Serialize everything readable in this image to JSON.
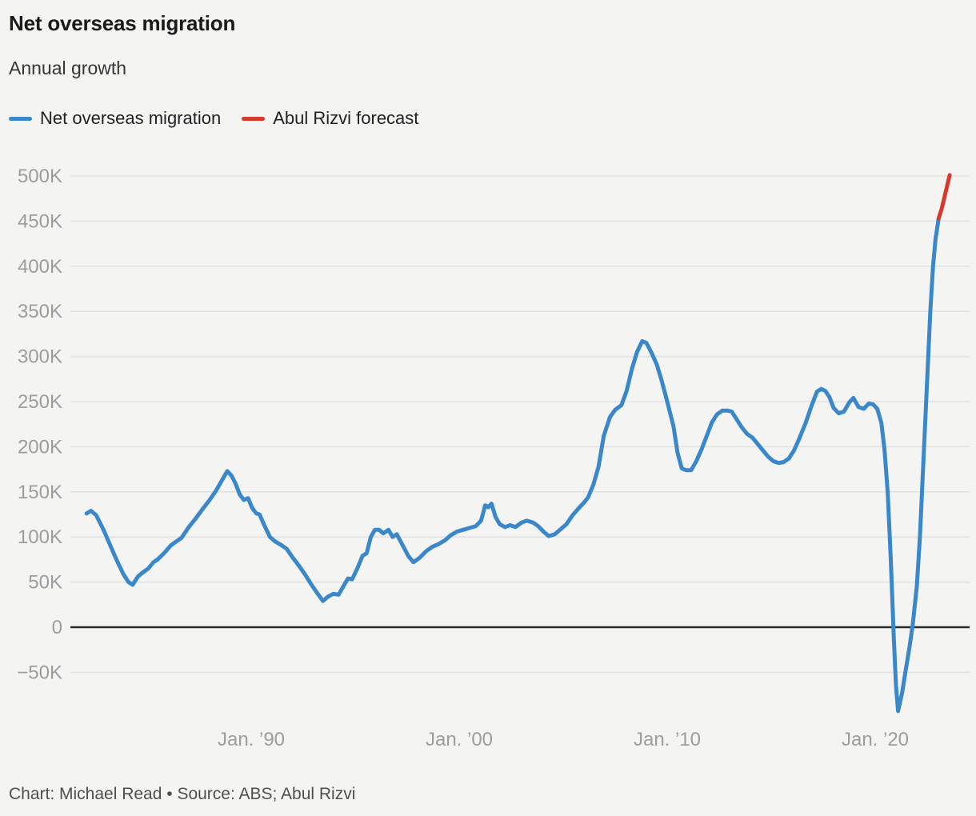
{
  "header": {
    "title": "Net overseas migration",
    "subtitle": "Annual growth"
  },
  "legend": {
    "items": [
      {
        "label": "Net overseas migration",
        "color": "#3a87c9"
      },
      {
        "label": "Abul Rizvi forecast",
        "color": "#d53a2d"
      }
    ]
  },
  "footer": {
    "text": "Chart: Michael Read • Source: ABS; Abul Rizvi"
  },
  "colors": {
    "background": "#f4f4f3",
    "gridline": "#e1e1e1",
    "zero_line": "#2b2b2b",
    "tick_label": "#9d9d9d",
    "title": "#1a1a1a",
    "subtitle": "#363636",
    "footer": "#4f4f4f",
    "nom_line": "#3a87c9",
    "forecast_line": "#d53a2d"
  },
  "chart_data": {
    "type": "line",
    "title": "Net overseas migration",
    "subtitle": "Annual growth",
    "xlabel": "",
    "ylabel": "",
    "unit": "persons (thousands)",
    "grid": true,
    "legend_position": "top-left",
    "x_range": [
      1982,
      2023.8
    ],
    "y_range_thousands": [
      -100,
      500
    ],
    "y_ticks": [
      {
        "value": 500,
        "label": "500K"
      },
      {
        "value": 450,
        "label": "450K"
      },
      {
        "value": 400,
        "label": "400K"
      },
      {
        "value": 350,
        "label": "350K"
      },
      {
        "value": 300,
        "label": "300K"
      },
      {
        "value": 250,
        "label": "250K"
      },
      {
        "value": 200,
        "label": "200K"
      },
      {
        "value": 150,
        "label": "150K"
      },
      {
        "value": 100,
        "label": "100K"
      },
      {
        "value": 50,
        "label": "50K"
      },
      {
        "value": 0,
        "label": "0"
      },
      {
        "value": -50,
        "label": "−50K"
      }
    ],
    "x_ticks": [
      {
        "value": 1990,
        "label": "Jan. ’90"
      },
      {
        "value": 2000,
        "label": "Jan. ’00"
      },
      {
        "value": 2010,
        "label": "Jan. ’10"
      },
      {
        "value": 2020,
        "label": "Jan. ’20"
      }
    ],
    "series": [
      {
        "name": "Net overseas migration",
        "color": "#3a87c9",
        "points": [
          [
            1982.08,
            126
          ],
          [
            1982.3,
            129
          ],
          [
            1982.55,
            124
          ],
          [
            1982.9,
            108
          ],
          [
            1983.2,
            92
          ],
          [
            1983.5,
            76
          ],
          [
            1983.85,
            59
          ],
          [
            1984.1,
            50
          ],
          [
            1984.3,
            47
          ],
          [
            1984.55,
            56
          ],
          [
            1984.75,
            60
          ],
          [
            1985.05,
            65
          ],
          [
            1985.3,
            72
          ],
          [
            1985.5,
            75
          ],
          [
            1985.85,
            83
          ],
          [
            1986.15,
            91
          ],
          [
            1986.4,
            95
          ],
          [
            1986.65,
            99
          ],
          [
            1987.0,
            111
          ],
          [
            1987.35,
            121
          ],
          [
            1987.7,
            132
          ],
          [
            1988.0,
            141
          ],
          [
            1988.3,
            151
          ],
          [
            1988.6,
            163
          ],
          [
            1988.85,
            173
          ],
          [
            1989.05,
            168
          ],
          [
            1989.25,
            159
          ],
          [
            1989.45,
            147
          ],
          [
            1989.65,
            141
          ],
          [
            1989.85,
            143
          ],
          [
            1990.05,
            132
          ],
          [
            1990.25,
            126
          ],
          [
            1990.4,
            125
          ],
          [
            1990.65,
            112
          ],
          [
            1990.9,
            100
          ],
          [
            1991.15,
            95
          ],
          [
            1991.45,
            91
          ],
          [
            1991.7,
            87
          ],
          [
            1992.0,
            77
          ],
          [
            1992.3,
            68
          ],
          [
            1992.6,
            58
          ],
          [
            1992.9,
            47
          ],
          [
            1993.2,
            37
          ],
          [
            1993.45,
            29
          ],
          [
            1993.7,
            34
          ],
          [
            1993.95,
            37
          ],
          [
            1994.2,
            36
          ],
          [
            1994.5,
            48
          ],
          [
            1994.65,
            54
          ],
          [
            1994.85,
            53
          ],
          [
            1995.1,
            65
          ],
          [
            1995.35,
            79
          ],
          [
            1995.55,
            82
          ],
          [
            1995.75,
            100
          ],
          [
            1995.95,
            108
          ],
          [
            1996.15,
            108
          ],
          [
            1996.35,
            104
          ],
          [
            1996.6,
            108
          ],
          [
            1996.8,
            100
          ],
          [
            1997.0,
            103
          ],
          [
            1997.3,
            90
          ],
          [
            1997.55,
            79
          ],
          [
            1997.8,
            72
          ],
          [
            1998.1,
            77
          ],
          [
            1998.4,
            84
          ],
          [
            1998.7,
            89
          ],
          [
            1999.0,
            92
          ],
          [
            1999.3,
            96
          ],
          [
            1999.6,
            102
          ],
          [
            1999.9,
            106
          ],
          [
            2000.2,
            108
          ],
          [
            2000.5,
            110
          ],
          [
            2000.8,
            112
          ],
          [
            2001.05,
            118
          ],
          [
            2001.25,
            135
          ],
          [
            2001.4,
            133
          ],
          [
            2001.55,
            137
          ],
          [
            2001.75,
            122
          ],
          [
            2001.95,
            114
          ],
          [
            2002.2,
            111
          ],
          [
            2002.45,
            113
          ],
          [
            2002.7,
            111
          ],
          [
            2003.0,
            116
          ],
          [
            2003.25,
            118
          ],
          [
            2003.55,
            116
          ],
          [
            2003.8,
            112
          ],
          [
            2004.05,
            106
          ],
          [
            2004.3,
            101
          ],
          [
            2004.6,
            103
          ],
          [
            2004.9,
            109
          ],
          [
            2005.15,
            114
          ],
          [
            2005.45,
            124
          ],
          [
            2005.75,
            132
          ],
          [
            2006.0,
            138
          ],
          [
            2006.2,
            144
          ],
          [
            2006.45,
            158
          ],
          [
            2006.7,
            178
          ],
          [
            2006.95,
            212
          ],
          [
            2007.25,
            233
          ],
          [
            2007.5,
            241
          ],
          [
            2007.8,
            246
          ],
          [
            2008.05,
            262
          ],
          [
            2008.3,
            286
          ],
          [
            2008.55,
            305
          ],
          [
            2008.8,
            317
          ],
          [
            2009.0,
            315
          ],
          [
            2009.25,
            304
          ],
          [
            2009.5,
            291
          ],
          [
            2009.7,
            276
          ],
          [
            2009.9,
            259
          ],
          [
            2010.1,
            241
          ],
          [
            2010.3,
            223
          ],
          [
            2010.5,
            193
          ],
          [
            2010.7,
            176
          ],
          [
            2010.9,
            174
          ],
          [
            2011.15,
            174
          ],
          [
            2011.4,
            184
          ],
          [
            2011.65,
            197
          ],
          [
            2011.9,
            212
          ],
          [
            2012.15,
            227
          ],
          [
            2012.4,
            236
          ],
          [
            2012.65,
            240
          ],
          [
            2012.9,
            240
          ],
          [
            2013.1,
            239
          ],
          [
            2013.35,
            230
          ],
          [
            2013.6,
            221
          ],
          [
            2013.85,
            214
          ],
          [
            2014.1,
            210
          ],
          [
            2014.35,
            203
          ],
          [
            2014.6,
            196
          ],
          [
            2014.85,
            189
          ],
          [
            2015.1,
            184
          ],
          [
            2015.35,
            182
          ],
          [
            2015.6,
            183
          ],
          [
            2015.85,
            187
          ],
          [
            2016.1,
            196
          ],
          [
            2016.35,
            209
          ],
          [
            2016.65,
            226
          ],
          [
            2016.95,
            246
          ],
          [
            2017.2,
            261
          ],
          [
            2017.4,
            264
          ],
          [
            2017.6,
            262
          ],
          [
            2017.8,
            255
          ],
          [
            2018.0,
            243
          ],
          [
            2018.25,
            237
          ],
          [
            2018.5,
            239
          ],
          [
            2018.75,
            249
          ],
          [
            2018.95,
            254
          ],
          [
            2019.2,
            244
          ],
          [
            2019.45,
            242
          ],
          [
            2019.7,
            248
          ],
          [
            2019.9,
            247
          ],
          [
            2020.1,
            242
          ],
          [
            2020.3,
            226
          ],
          [
            2020.45,
            196
          ],
          [
            2020.6,
            150
          ],
          [
            2020.75,
            75
          ],
          [
            2020.9,
            -15
          ],
          [
            2021.0,
            -65
          ],
          [
            2021.1,
            -93
          ],
          [
            2021.3,
            -72
          ],
          [
            2021.45,
            -50
          ],
          [
            2021.65,
            -22
          ],
          [
            2021.8,
            2
          ],
          [
            2022.0,
            45
          ],
          [
            2022.15,
            100
          ],
          [
            2022.25,
            150
          ],
          [
            2022.35,
            200
          ],
          [
            2022.45,
            250
          ],
          [
            2022.55,
            300
          ],
          [
            2022.65,
            350
          ],
          [
            2022.78,
            400
          ],
          [
            2022.9,
            430
          ],
          [
            2023.05,
            453
          ]
        ]
      },
      {
        "name": "Abul Rizvi forecast",
        "color": "#d53a2d",
        "points": [
          [
            2023.05,
            453
          ],
          [
            2023.2,
            464
          ],
          [
            2023.58,
            501
          ]
        ]
      }
    ]
  }
}
